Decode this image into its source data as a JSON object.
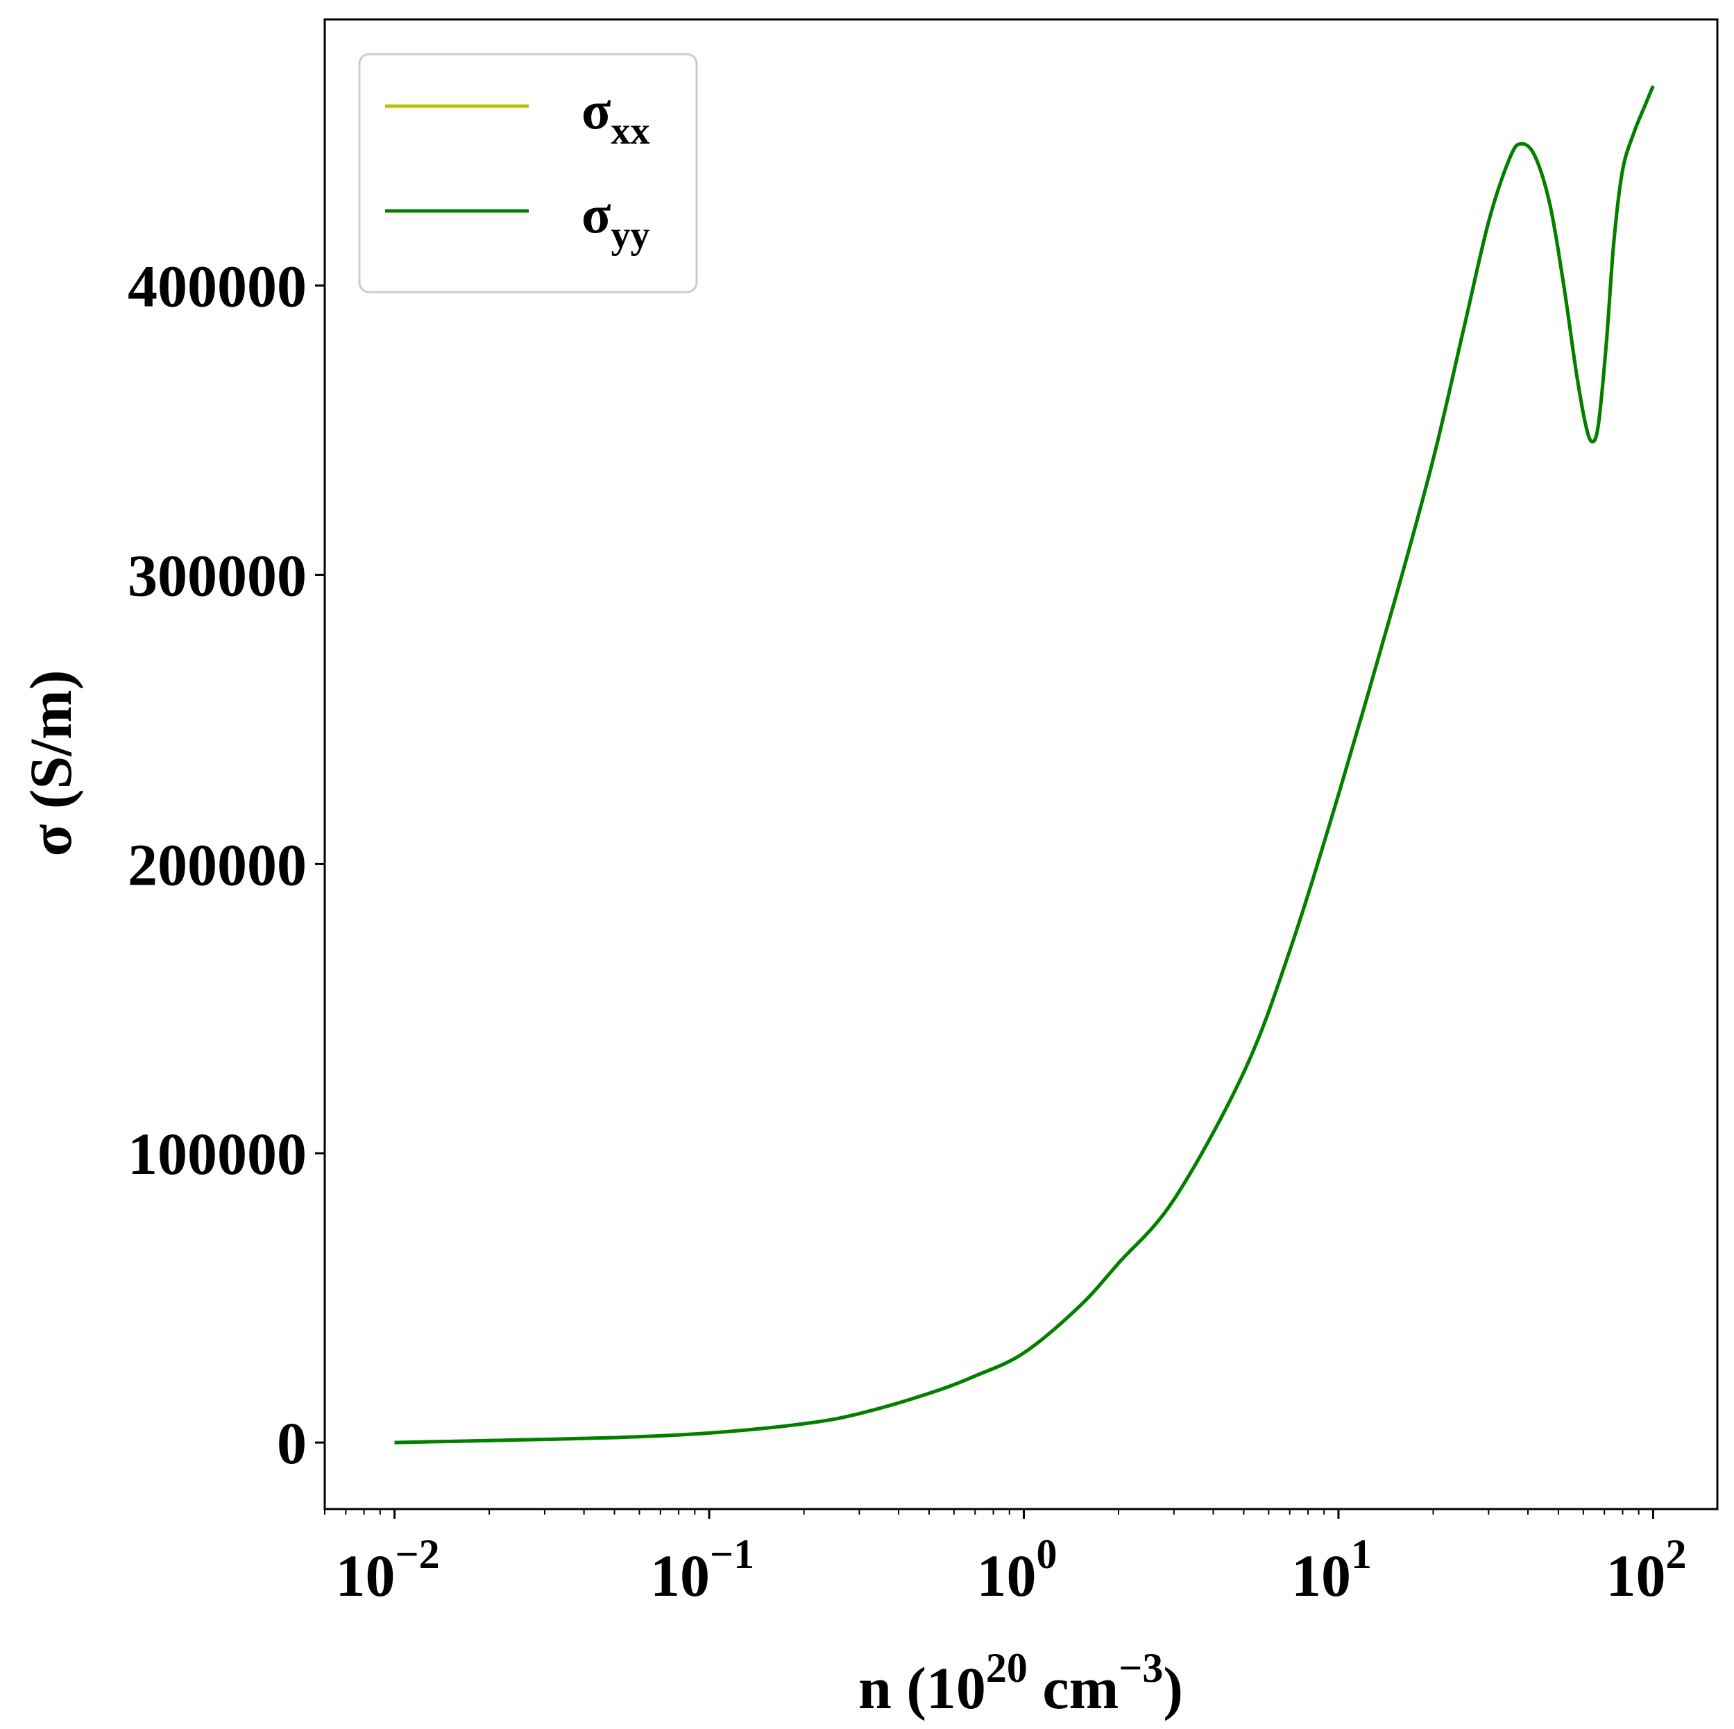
{
  "chart_data": {
    "type": "line",
    "x_scale": "log",
    "xlim": [
      0.006,
      160
    ],
    "ylim": [
      -23000,
      492000
    ],
    "xlabel": {
      "base": "n (10",
      "sup1": "20",
      "mid": " cm",
      "sup2": "−3",
      "end": ")"
    },
    "ylabel": "σ (S/m)",
    "x_ticks": [
      {
        "value": 0.01,
        "base": "10",
        "exp": "−2"
      },
      {
        "value": 0.1,
        "base": "10",
        "exp": "−1"
      },
      {
        "value": 1,
        "base": "10",
        "exp": "0"
      },
      {
        "value": 10,
        "base": "10",
        "exp": "1"
      },
      {
        "value": 100,
        "base": "10",
        "exp": "2"
      }
    ],
    "y_ticks": [
      {
        "value": 0,
        "label": "0"
      },
      {
        "value": 100000,
        "label": "100000"
      },
      {
        "value": 200000,
        "label": "200000"
      },
      {
        "value": 300000,
        "label": "300000"
      },
      {
        "value": 400000,
        "label": "400000"
      }
    ],
    "grid": false,
    "legend": {
      "position": "top-left"
    },
    "series": [
      {
        "name": {
          "base": "σ",
          "sub": "xx"
        },
        "color": "#bfbf00",
        "points": [
          [
            0.01,
            0
          ],
          [
            0.02,
            700
          ],
          [
            0.05,
            1700
          ],
          [
            0.1,
            3300
          ],
          [
            0.2,
            6500
          ],
          [
            0.3,
            10000
          ],
          [
            0.5,
            17000
          ],
          [
            0.7,
            23000
          ],
          [
            1,
            31000
          ],
          [
            1.5,
            47000
          ],
          [
            2,
            62000
          ],
          [
            3,
            84000
          ],
          [
            5,
            128000
          ],
          [
            7,
            170000
          ],
          [
            10,
            224000
          ],
          [
            15,
            290000
          ],
          [
            20,
            340000
          ],
          [
            25,
            385000
          ],
          [
            30,
            422000
          ],
          [
            35,
            444000
          ],
          [
            38,
            449000
          ],
          [
            42,
            445000
          ],
          [
            47,
            428000
          ],
          [
            52,
            400000
          ],
          [
            57,
            370000
          ],
          [
            61,
            352000
          ],
          [
            64,
            346000
          ],
          [
            67,
            352000
          ],
          [
            71,
            380000
          ],
          [
            75,
            415000
          ],
          [
            80,
            440000
          ],
          [
            87,
            453000
          ],
          [
            94,
            462000
          ],
          [
            100,
            469000
          ]
        ]
      },
      {
        "name": {
          "base": "σ",
          "sub": "yy"
        },
        "color": "#008000",
        "points": [
          [
            0.01,
            0
          ],
          [
            0.02,
            700
          ],
          [
            0.05,
            1700
          ],
          [
            0.1,
            3300
          ],
          [
            0.2,
            6500
          ],
          [
            0.3,
            10000
          ],
          [
            0.5,
            17000
          ],
          [
            0.7,
            23000
          ],
          [
            1,
            31000
          ],
          [
            1.5,
            47000
          ],
          [
            2,
            62000
          ],
          [
            3,
            84000
          ],
          [
            5,
            128000
          ],
          [
            7,
            170000
          ],
          [
            10,
            224000
          ],
          [
            15,
            290000
          ],
          [
            20,
            340000
          ],
          [
            25,
            385000
          ],
          [
            30,
            422000
          ],
          [
            35,
            444000
          ],
          [
            38,
            449000
          ],
          [
            42,
            445000
          ],
          [
            47,
            428000
          ],
          [
            52,
            400000
          ],
          [
            57,
            370000
          ],
          [
            61,
            352000
          ],
          [
            64,
            346000
          ],
          [
            67,
            352000
          ],
          [
            71,
            380000
          ],
          [
            75,
            415000
          ],
          [
            80,
            440000
          ],
          [
            87,
            453000
          ],
          [
            94,
            462000
          ],
          [
            100,
            469000
          ]
        ]
      }
    ]
  }
}
